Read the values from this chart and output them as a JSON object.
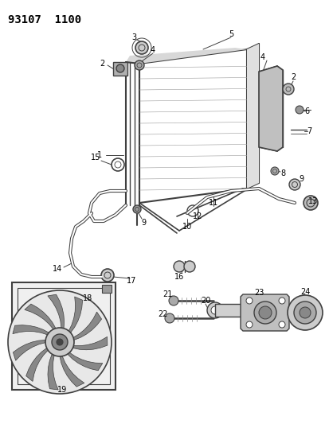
{
  "title": "93107  1100",
  "bg_color": "#ffffff",
  "lc": "#404040",
  "figsize": [
    4.14,
    5.33
  ],
  "dpi": 100
}
